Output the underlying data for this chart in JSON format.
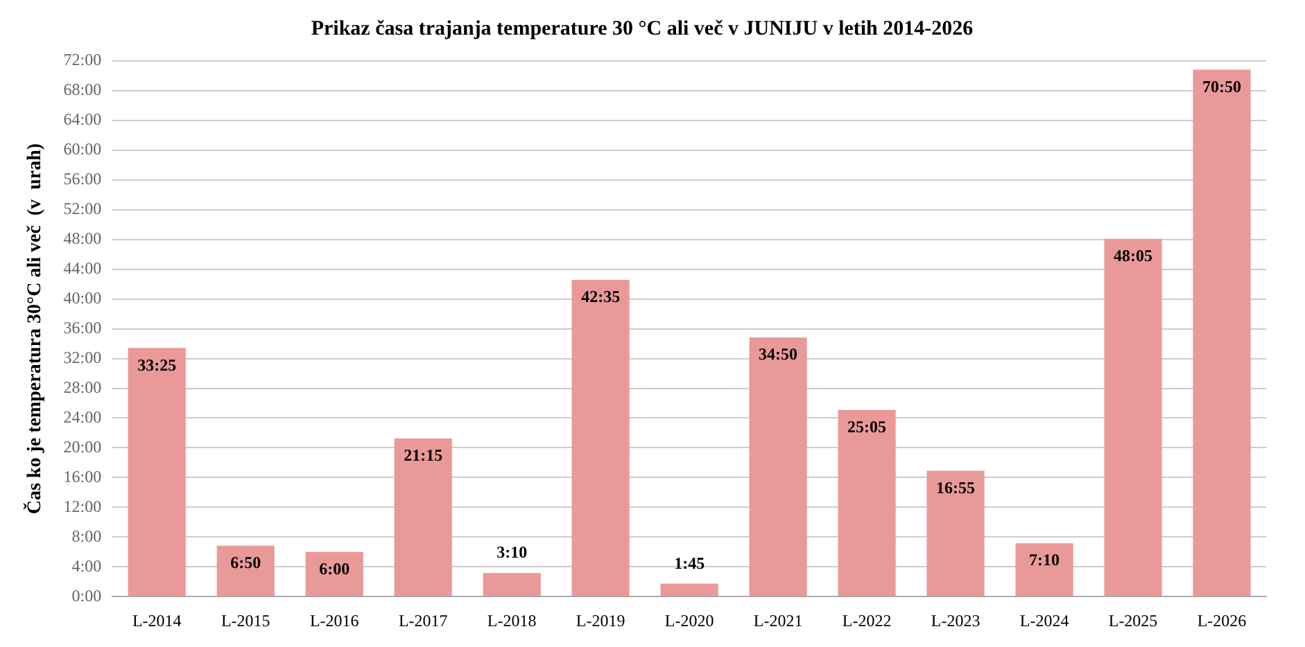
{
  "chart_data": {
    "type": "bar",
    "title": "Prikaz časa trajanja temperature 30 °C ali več v JUNIJU v letih 2014-2026",
    "ylabel": "Čas ko je temperatura 30°C ali več  (v  urah)",
    "categories": [
      "L-2014",
      "L-2015",
      "L-2016",
      "L-2017",
      "L-2018",
      "L-2019",
      "L-2020",
      "L-2021",
      "L-2022",
      "L-2023",
      "L-2024",
      "L-2025",
      "L-2026"
    ],
    "values": [
      33.4167,
      6.8333,
      6,
      21.25,
      3.1667,
      42.5833,
      1.75,
      34.8333,
      25.0833,
      16.9167,
      7.1667,
      48.0833,
      70.8333
    ],
    "value_labels": [
      "33:25",
      "6:50",
      "6:00",
      "21:15",
      "3:10",
      "42:35",
      "1:45",
      "34:50",
      "25:05",
      "16:55",
      "7:10",
      "48:05",
      "70:50"
    ],
    "color": "#ea9999",
    "ylim": [
      0,
      72
    ],
    "yticks": [
      {
        "value": 0,
        "label": "0:00"
      },
      {
        "value": 4,
        "label": "4:00"
      },
      {
        "value": 8,
        "label": "8:00"
      },
      {
        "value": 12,
        "label": "12:00"
      },
      {
        "value": 16,
        "label": "16:00"
      },
      {
        "value": 20,
        "label": "20:00"
      },
      {
        "value": 24,
        "label": "24:00"
      },
      {
        "value": 28,
        "label": "28:00"
      },
      {
        "value": 32,
        "label": "32:00"
      },
      {
        "value": 36,
        "label": "36:00"
      },
      {
        "value": 40,
        "label": "40:00"
      },
      {
        "value": 44,
        "label": "44:00"
      },
      {
        "value": 48,
        "label": "48:00"
      },
      {
        "value": 52,
        "label": "52:00"
      },
      {
        "value": 56,
        "label": "56:00"
      },
      {
        "value": 60,
        "label": "60:00"
      },
      {
        "value": 64,
        "label": "64:00"
      },
      {
        "value": 68,
        "label": "68:00"
      },
      {
        "value": 72,
        "label": "72:00"
      }
    ],
    "grid": "y",
    "legend": false
  }
}
